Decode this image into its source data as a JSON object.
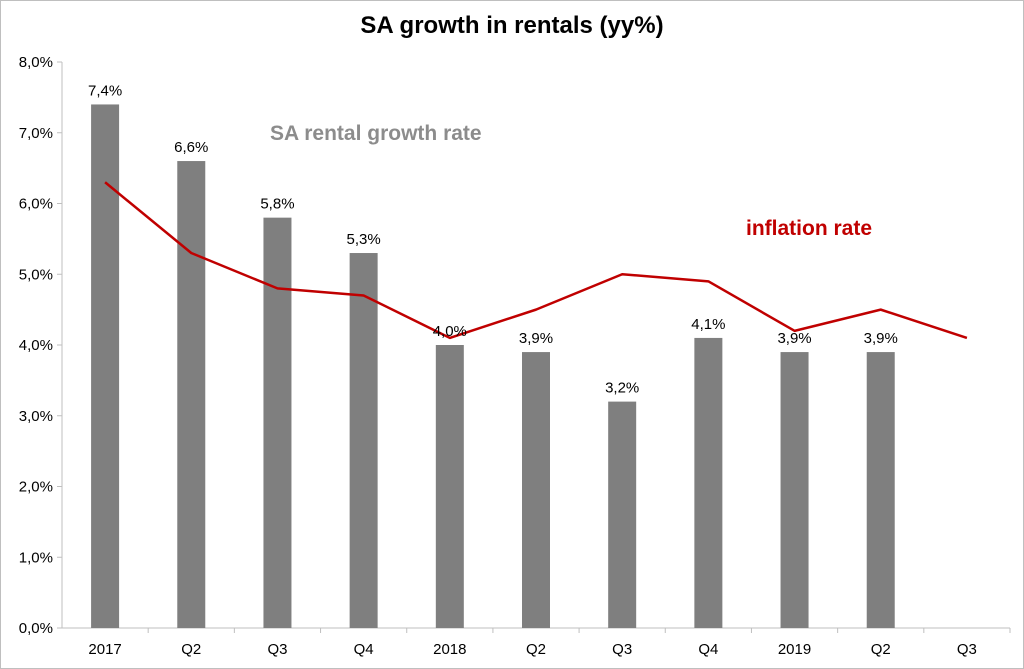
{
  "chart_data": {
    "type": "bar",
    "title": "SA growth in rentals (yy%)",
    "categories": [
      "2017",
      "Q2",
      "Q3",
      "Q4",
      "2018",
      "Q2",
      "Q3",
      "Q4",
      "2019",
      "Q2",
      "Q3"
    ],
    "series": [
      {
        "name": "SA rental growth rate",
        "type": "bar",
        "values": [
          7.4,
          6.6,
          5.8,
          5.3,
          4.0,
          3.9,
          3.2,
          4.1,
          3.9,
          3.9,
          null
        ],
        "labels": [
          "7,4%",
          "6,6%",
          "5,8%",
          "5,3%",
          "4,0%",
          "3,9%",
          "3,2%",
          "4,1%",
          "3,9%",
          "3,9%",
          ""
        ],
        "color": "#7f7f7f"
      },
      {
        "name": "inflation rate",
        "type": "line",
        "values": [
          6.3,
          5.3,
          4.8,
          4.7,
          4.1,
          4.5,
          5.0,
          4.9,
          4.2,
          4.5,
          4.1
        ],
        "color": "#c00000"
      }
    ],
    "yticks": [
      "0,0%",
      "1,0%",
      "2,0%",
      "3,0%",
      "4,0%",
      "5,0%",
      "6,0%",
      "7,0%",
      "8,0%"
    ],
    "ylim": [
      0,
      8
    ],
    "xlabel": "",
    "ylabel": "",
    "grid": false,
    "annotations": {
      "rental": "SA rental growth rate",
      "inflation": "inflation rate"
    }
  }
}
